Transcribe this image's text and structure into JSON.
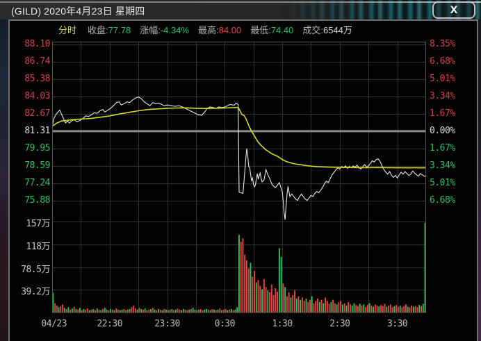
{
  "window": {
    "title": "(GILD) 2020年4月23日 星期四",
    "close_label": "X"
  },
  "info_bar": {
    "mode": "分时",
    "fields": [
      {
        "label": "收盘:",
        "value": "77.78",
        "tone": "green"
      },
      {
        "label": "涨幅:",
        "value": "-4.34%",
        "tone": "green"
      },
      {
        "label": "最高:",
        "value": "84.00",
        "tone": "red"
      },
      {
        "label": "最低:",
        "value": "74.40",
        "tone": "green"
      },
      {
        "label": "成交:",
        "value": "6544万",
        "tone": "gray"
      }
    ]
  },
  "colors": {
    "price_line": "#e8e8e8",
    "avg_line": "#d8d82c",
    "vol_up": "#2fc25b",
    "vol_down": "#e34545",
    "grid": "#323232",
    "frame": "#565656",
    "prev_close_band": "#8e8e8e",
    "label_up": "#d04050",
    "label_down": "#2fbf6b",
    "label_flat": "#dcdcdc"
  },
  "chart_data": {
    "type": "line",
    "title": "GILD 分时 (intraday price + volume)",
    "x_minutes_total": 390,
    "x_axis": {
      "labels": [
        {
          "text": "04/23",
          "min": 2
        },
        {
          "text": "22:30",
          "min": 60
        },
        {
          "text": "23:30",
          "min": 120
        },
        {
          "text": "0:30",
          "min": 180
        },
        {
          "text": "1:30",
          "min": 240
        },
        {
          "text": "2:30",
          "min": 300
        },
        {
          "text": "3:30",
          "min": 360
        }
      ],
      "gridline_every_min": 30
    },
    "price_axis": {
      "pane_max": 88.3,
      "pane_min": 74.25,
      "prev_close": 81.31,
      "gridlines": [
        {
          "price": "88.10",
          "pct": "8.35%"
        },
        {
          "price": "86.74",
          "pct": "6.68%"
        },
        {
          "price": "85.38",
          "pct": "5.01%"
        },
        {
          "price": "84.03",
          "pct": "3.34%"
        },
        {
          "price": "82.67",
          "pct": "1.67%"
        },
        {
          "price": "81.31",
          "pct": "0.00%"
        },
        {
          "price": "79.95",
          "pct": "1.67%"
        },
        {
          "price": "78.59",
          "pct": "3.34%"
        },
        {
          "price": "77.24",
          "pct": "5.01%"
        },
        {
          "price": "75.88",
          "pct": "6.68%"
        }
      ]
    },
    "volume_axis": {
      "max_wan": 157,
      "gridlines": [
        {
          "value": 157,
          "label": "157万"
        },
        {
          "value": 117.75,
          "label": "118万"
        },
        {
          "value": 78.5,
          "label": "78.5万"
        },
        {
          "value": 39.25,
          "label": "39.2万"
        }
      ]
    },
    "series": [
      {
        "name": "price",
        "points": [
          [
            0,
            81.65
          ],
          [
            2,
            82.35
          ],
          [
            4,
            82.6
          ],
          [
            6,
            82.8
          ],
          [
            8,
            82.95
          ],
          [
            10,
            82.6
          ],
          [
            12,
            82.25
          ],
          [
            14,
            81.95
          ],
          [
            16,
            82.1
          ],
          [
            18,
            81.95
          ],
          [
            20,
            82.1
          ],
          [
            23,
            82.2
          ],
          [
            26,
            82.05
          ],
          [
            29,
            82.15
          ],
          [
            32,
            82.3
          ],
          [
            35,
            82.5
          ],
          [
            38,
            82.45
          ],
          [
            41,
            82.6
          ],
          [
            44,
            82.75
          ],
          [
            47,
            82.7
          ],
          [
            50,
            82.9
          ],
          [
            53,
            83.0
          ],
          [
            55,
            82.8
          ],
          [
            58,
            82.95
          ],
          [
            61,
            83.1
          ],
          [
            64,
            83.3
          ],
          [
            67,
            83.55
          ],
          [
            70,
            83.6
          ],
          [
            72,
            83.35
          ],
          [
            75,
            83.45
          ],
          [
            78,
            83.6
          ],
          [
            81,
            83.55
          ],
          [
            84,
            83.75
          ],
          [
            87,
            83.9
          ],
          [
            90,
            83.98
          ],
          [
            93,
            83.85
          ],
          [
            96,
            83.6
          ],
          [
            99,
            83.45
          ],
          [
            102,
            83.3
          ],
          [
            105,
            83.55
          ],
          [
            108,
            83.45
          ],
          [
            111,
            83.5
          ],
          [
            114,
            83.4
          ],
          [
            117,
            83.3
          ],
          [
            120,
            83.35
          ],
          [
            124,
            83.3
          ],
          [
            128,
            83.25
          ],
          [
            132,
            83.3
          ],
          [
            136,
            83.2
          ],
          [
            140,
            83.05
          ],
          [
            144,
            82.9
          ],
          [
            148,
            82.75
          ],
          [
            152,
            82.6
          ],
          [
            156,
            82.55
          ],
          [
            159,
            82.8
          ],
          [
            162,
            83.1
          ],
          [
            165,
            83.2
          ],
          [
            168,
            83.15
          ],
          [
            171,
            83.1
          ],
          [
            174,
            83.2
          ],
          [
            177,
            83.15
          ],
          [
            180,
            83.2
          ],
          [
            183,
            83.3
          ],
          [
            186,
            83.4
          ],
          [
            188,
            83.35
          ],
          [
            190,
            83.35
          ],
          [
            192,
            83.5
          ],
          [
            194,
            83.4
          ],
          [
            195,
            76.55
          ],
          [
            197,
            76.5
          ],
          [
            199,
            76.45
          ],
          [
            200,
            77.3
          ],
          [
            202,
            79.2
          ],
          [
            203,
            79.95
          ],
          [
            204,
            79.4
          ],
          [
            205,
            78.55
          ],
          [
            206,
            78.5
          ],
          [
            207,
            77.9
          ],
          [
            208,
            77.45
          ],
          [
            209,
            77.65
          ],
          [
            210,
            77.15
          ],
          [
            211,
            76.95
          ],
          [
            212,
            77.1
          ],
          [
            213,
            77.6
          ],
          [
            214,
            78.0
          ],
          [
            215,
            77.55
          ],
          [
            216,
            77.85
          ],
          [
            217,
            78.05
          ],
          [
            218,
            77.6
          ],
          [
            219,
            77.35
          ],
          [
            221,
            77.5
          ],
          [
            223,
            78.3
          ],
          [
            225,
            77.9
          ],
          [
            227,
            77.6
          ],
          [
            229,
            77.2
          ],
          [
            231,
            77.0
          ],
          [
            233,
            76.9
          ],
          [
            235,
            77.1
          ],
          [
            237,
            77.3
          ],
          [
            239,
            76.8
          ],
          [
            240,
            76.6
          ],
          [
            241,
            75.8
          ],
          [
            242,
            74.9
          ],
          [
            243,
            74.4
          ],
          [
            244,
            75.5
          ],
          [
            245,
            76.4
          ],
          [
            246,
            77.0
          ],
          [
            247,
            76.6
          ],
          [
            248,
            76.2
          ],
          [
            250,
            76.4
          ],
          [
            252,
            76.2
          ],
          [
            254,
            76.0
          ],
          [
            256,
            75.9
          ],
          [
            258,
            76.2
          ],
          [
            260,
            76.4
          ],
          [
            262,
            76.2
          ],
          [
            264,
            76.0
          ],
          [
            266,
            75.9
          ],
          [
            268,
            76.1
          ],
          [
            270,
            76.3
          ],
          [
            272,
            76.2
          ],
          [
            274,
            76.45
          ],
          [
            276,
            76.6
          ],
          [
            278,
            76.5
          ],
          [
            280,
            76.7
          ],
          [
            282,
            76.9
          ],
          [
            284,
            77.2
          ],
          [
            286,
            77.4
          ],
          [
            288,
            77.3
          ],
          [
            290,
            77.6
          ],
          [
            292,
            77.9
          ],
          [
            294,
            78.1
          ],
          [
            296,
            78.3
          ],
          [
            298,
            78.45
          ],
          [
            300,
            78.35
          ],
          [
            302,
            78.55
          ],
          [
            304,
            78.45
          ],
          [
            306,
            78.6
          ],
          [
            308,
            78.4
          ],
          [
            310,
            78.55
          ],
          [
            312,
            78.45
          ],
          [
            314,
            78.6
          ],
          [
            316,
            78.5
          ],
          [
            318,
            78.65
          ],
          [
            320,
            78.45
          ],
          [
            322,
            78.35
          ],
          [
            324,
            78.55
          ],
          [
            326,
            78.7
          ],
          [
            328,
            78.5
          ],
          [
            330,
            78.6
          ],
          [
            332,
            78.8
          ],
          [
            334,
            79.0
          ],
          [
            336,
            78.9
          ],
          [
            338,
            79.1
          ],
          [
            340,
            79.15
          ],
          [
            342,
            78.95
          ],
          [
            344,
            78.6
          ],
          [
            346,
            78.3
          ],
          [
            348,
            78.1
          ],
          [
            350,
            77.95
          ],
          [
            352,
            78.15
          ],
          [
            354,
            77.85
          ],
          [
            356,
            77.7
          ],
          [
            358,
            77.85
          ],
          [
            360,
            77.65
          ],
          [
            362,
            77.9
          ],
          [
            364,
            78.1
          ],
          [
            366,
            77.95
          ],
          [
            368,
            78.15
          ],
          [
            370,
            78.0
          ],
          [
            372,
            77.85
          ],
          [
            374,
            77.95
          ],
          [
            376,
            78.2
          ],
          [
            378,
            78.05
          ],
          [
            380,
            77.9
          ],
          [
            382,
            77.8
          ],
          [
            384,
            78.0
          ],
          [
            386,
            77.9
          ],
          [
            388,
            77.8
          ],
          [
            390,
            77.78
          ]
        ]
      },
      {
        "name": "avg_price",
        "points": [
          [
            0,
            81.7
          ],
          [
            5,
            81.95
          ],
          [
            10,
            82.1
          ],
          [
            15,
            82.15
          ],
          [
            20,
            82.2
          ],
          [
            30,
            82.25
          ],
          [
            40,
            82.3
          ],
          [
            50,
            82.4
          ],
          [
            60,
            82.5
          ],
          [
            70,
            82.65
          ],
          [
            80,
            82.78
          ],
          [
            90,
            82.9
          ],
          [
            100,
            83.0
          ],
          [
            110,
            83.05
          ],
          [
            120,
            83.1
          ],
          [
            130,
            83.12
          ],
          [
            140,
            83.13
          ],
          [
            150,
            83.1
          ],
          [
            160,
            83.08
          ],
          [
            170,
            83.1
          ],
          [
            180,
            83.12
          ],
          [
            190,
            83.15
          ],
          [
            194,
            83.17
          ],
          [
            196,
            82.9
          ],
          [
            198,
            82.6
          ],
          [
            200,
            82.55
          ],
          [
            202,
            82.3
          ],
          [
            204,
            81.95
          ],
          [
            206,
            81.6
          ],
          [
            208,
            81.3
          ],
          [
            210,
            81.05
          ],
          [
            212,
            80.8
          ],
          [
            214,
            80.55
          ],
          [
            216,
            80.35
          ],
          [
            218,
            80.2
          ],
          [
            220,
            80.05
          ],
          [
            223,
            79.85
          ],
          [
            226,
            79.7
          ],
          [
            229,
            79.55
          ],
          [
            232,
            79.45
          ],
          [
            235,
            79.35
          ],
          [
            238,
            79.2
          ],
          [
            241,
            79.05
          ],
          [
            244,
            78.95
          ],
          [
            248,
            78.85
          ],
          [
            252,
            78.78
          ],
          [
            256,
            78.72
          ],
          [
            260,
            78.68
          ],
          [
            265,
            78.62
          ],
          [
            270,
            78.58
          ],
          [
            276,
            78.54
          ],
          [
            282,
            78.52
          ],
          [
            290,
            78.5
          ],
          [
            300,
            78.48
          ],
          [
            310,
            78.47
          ],
          [
            320,
            78.46
          ],
          [
            330,
            78.46
          ],
          [
            340,
            78.47
          ],
          [
            350,
            78.46
          ],
          [
            360,
            78.45
          ],
          [
            370,
            78.45
          ],
          [
            380,
            78.45
          ],
          [
            390,
            78.45
          ]
        ]
      }
    ],
    "volume": {
      "bucket_min": 2,
      "values": [
        34,
        16,
        12,
        9,
        11,
        14,
        8,
        6,
        9,
        5,
        7,
        10,
        6,
        5,
        8,
        4,
        6,
        5,
        7,
        4,
        5,
        6,
        4,
        7,
        5,
        4,
        6,
        8,
        5,
        4,
        6,
        5,
        4,
        7,
        5,
        4,
        5,
        6,
        4,
        5,
        6,
        9,
        12,
        7,
        5,
        8,
        6,
        5,
        7,
        4,
        5,
        6,
        8,
        5,
        4,
        6,
        5,
        4,
        6,
        5,
        4,
        5,
        6,
        4,
        5,
        7,
        5,
        4,
        6,
        5,
        4,
        5,
        6,
        8,
        5,
        4,
        5,
        6,
        4,
        5,
        6,
        5,
        4,
        6,
        5,
        4,
        5,
        7,
        4,
        5,
        6,
        4,
        5,
        6,
        4,
        5,
        9,
        134,
        122,
        128,
        100,
        90,
        76,
        86,
        62,
        72,
        52,
        56,
        46,
        40,
        58,
        44,
        38,
        35,
        48,
        30,
        42,
        36,
        111,
        96,
        50,
        44,
        28,
        35,
        26,
        30,
        38,
        24,
        28,
        22,
        26,
        20,
        24,
        18,
        22,
        28,
        16,
        20,
        24,
        18,
        22,
        16,
        26,
        20,
        15,
        18,
        22,
        16,
        14,
        18,
        20,
        14,
        16,
        12,
        18,
        14,
        12,
        16,
        13,
        11,
        15,
        12,
        14,
        10,
        13,
        16,
        12,
        10,
        14,
        12,
        11,
        13,
        11,
        15,
        10,
        12,
        14,
        9,
        11,
        13,
        10,
        12,
        9,
        11,
        14,
        10,
        9,
        12,
        10,
        11,
        9,
        13,
        11,
        15,
        155
      ],
      "colors": "grrgrrgrgrgrgrgrgrrgrgrgrgrggrgrgrrggrgrgrrrgrgrgrrgrgrgrgrggrgrgrrggrrgrggrgrrggrgrgrgrgrrgrgrgggrrrrrgrrgrrgrrgrrrrrggrgrrgrrgrgrrgrrgrrrgrgrrrgrrgrrgrgrrggrrgrgrrgrgrrgrrrgrrrgrrgrrrgrrgrrgrgg"
    }
  }
}
